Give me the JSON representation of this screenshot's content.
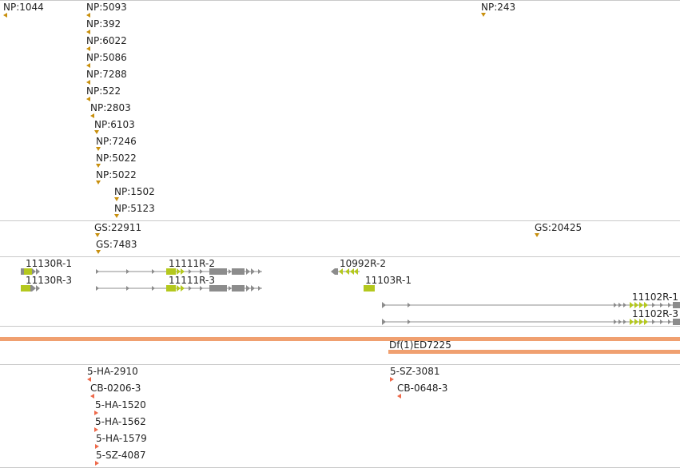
{
  "np_track": {
    "features": [
      {
        "label": "NP:1044"
      },
      {
        "label": "NP:5093"
      },
      {
        "label": "NP:243"
      },
      {
        "label": "NP:392"
      },
      {
        "label": "NP:6022"
      },
      {
        "label": "NP:5086"
      },
      {
        "label": "NP:7288"
      },
      {
        "label": "NP:522"
      },
      {
        "label": "NP:2803"
      },
      {
        "label": "NP:6103"
      },
      {
        "label": "NP:7246"
      },
      {
        "label": "NP:5022"
      },
      {
        "label": "NP:5022"
      },
      {
        "label": "NP:1502"
      },
      {
        "label": "NP:5123"
      }
    ]
  },
  "gs_track": {
    "features": [
      {
        "label": "GS:22911"
      },
      {
        "label": "GS:20425"
      },
      {
        "label": "GS:7483"
      }
    ]
  },
  "gene_track": {
    "features": [
      {
        "label": "11130R-1"
      },
      {
        "label": "11130R-3"
      },
      {
        "label": "11111R-2"
      },
      {
        "label": "11111R-3"
      },
      {
        "label": "10992R-2"
      },
      {
        "label": "11103R-1"
      },
      {
        "label": "11102R-1"
      },
      {
        "label": "11102R-3"
      }
    ]
  },
  "deficiency_track": {
    "features": [
      {
        "label": "Df(1)ED7225"
      }
    ]
  },
  "insertion_track": {
    "features": [
      {
        "label": "5-HA-2910"
      },
      {
        "label": "CB-0206-3"
      },
      {
        "label": "5-HA-1520"
      },
      {
        "label": "5-HA-1562"
      },
      {
        "label": "5-HA-1579"
      },
      {
        "label": "5-SZ-4087"
      },
      {
        "label": "5-SZ-3081"
      },
      {
        "label": "CB-0648-3"
      }
    ]
  },
  "colors": {
    "np_marker": "#c8900e",
    "insertion_marker": "#ee6a4b",
    "exon_highlight": "#b4c81e",
    "exon_grey": "#8c8c8c",
    "deficiency_bar": "#f0a070",
    "separator": "#c9c9c9"
  }
}
